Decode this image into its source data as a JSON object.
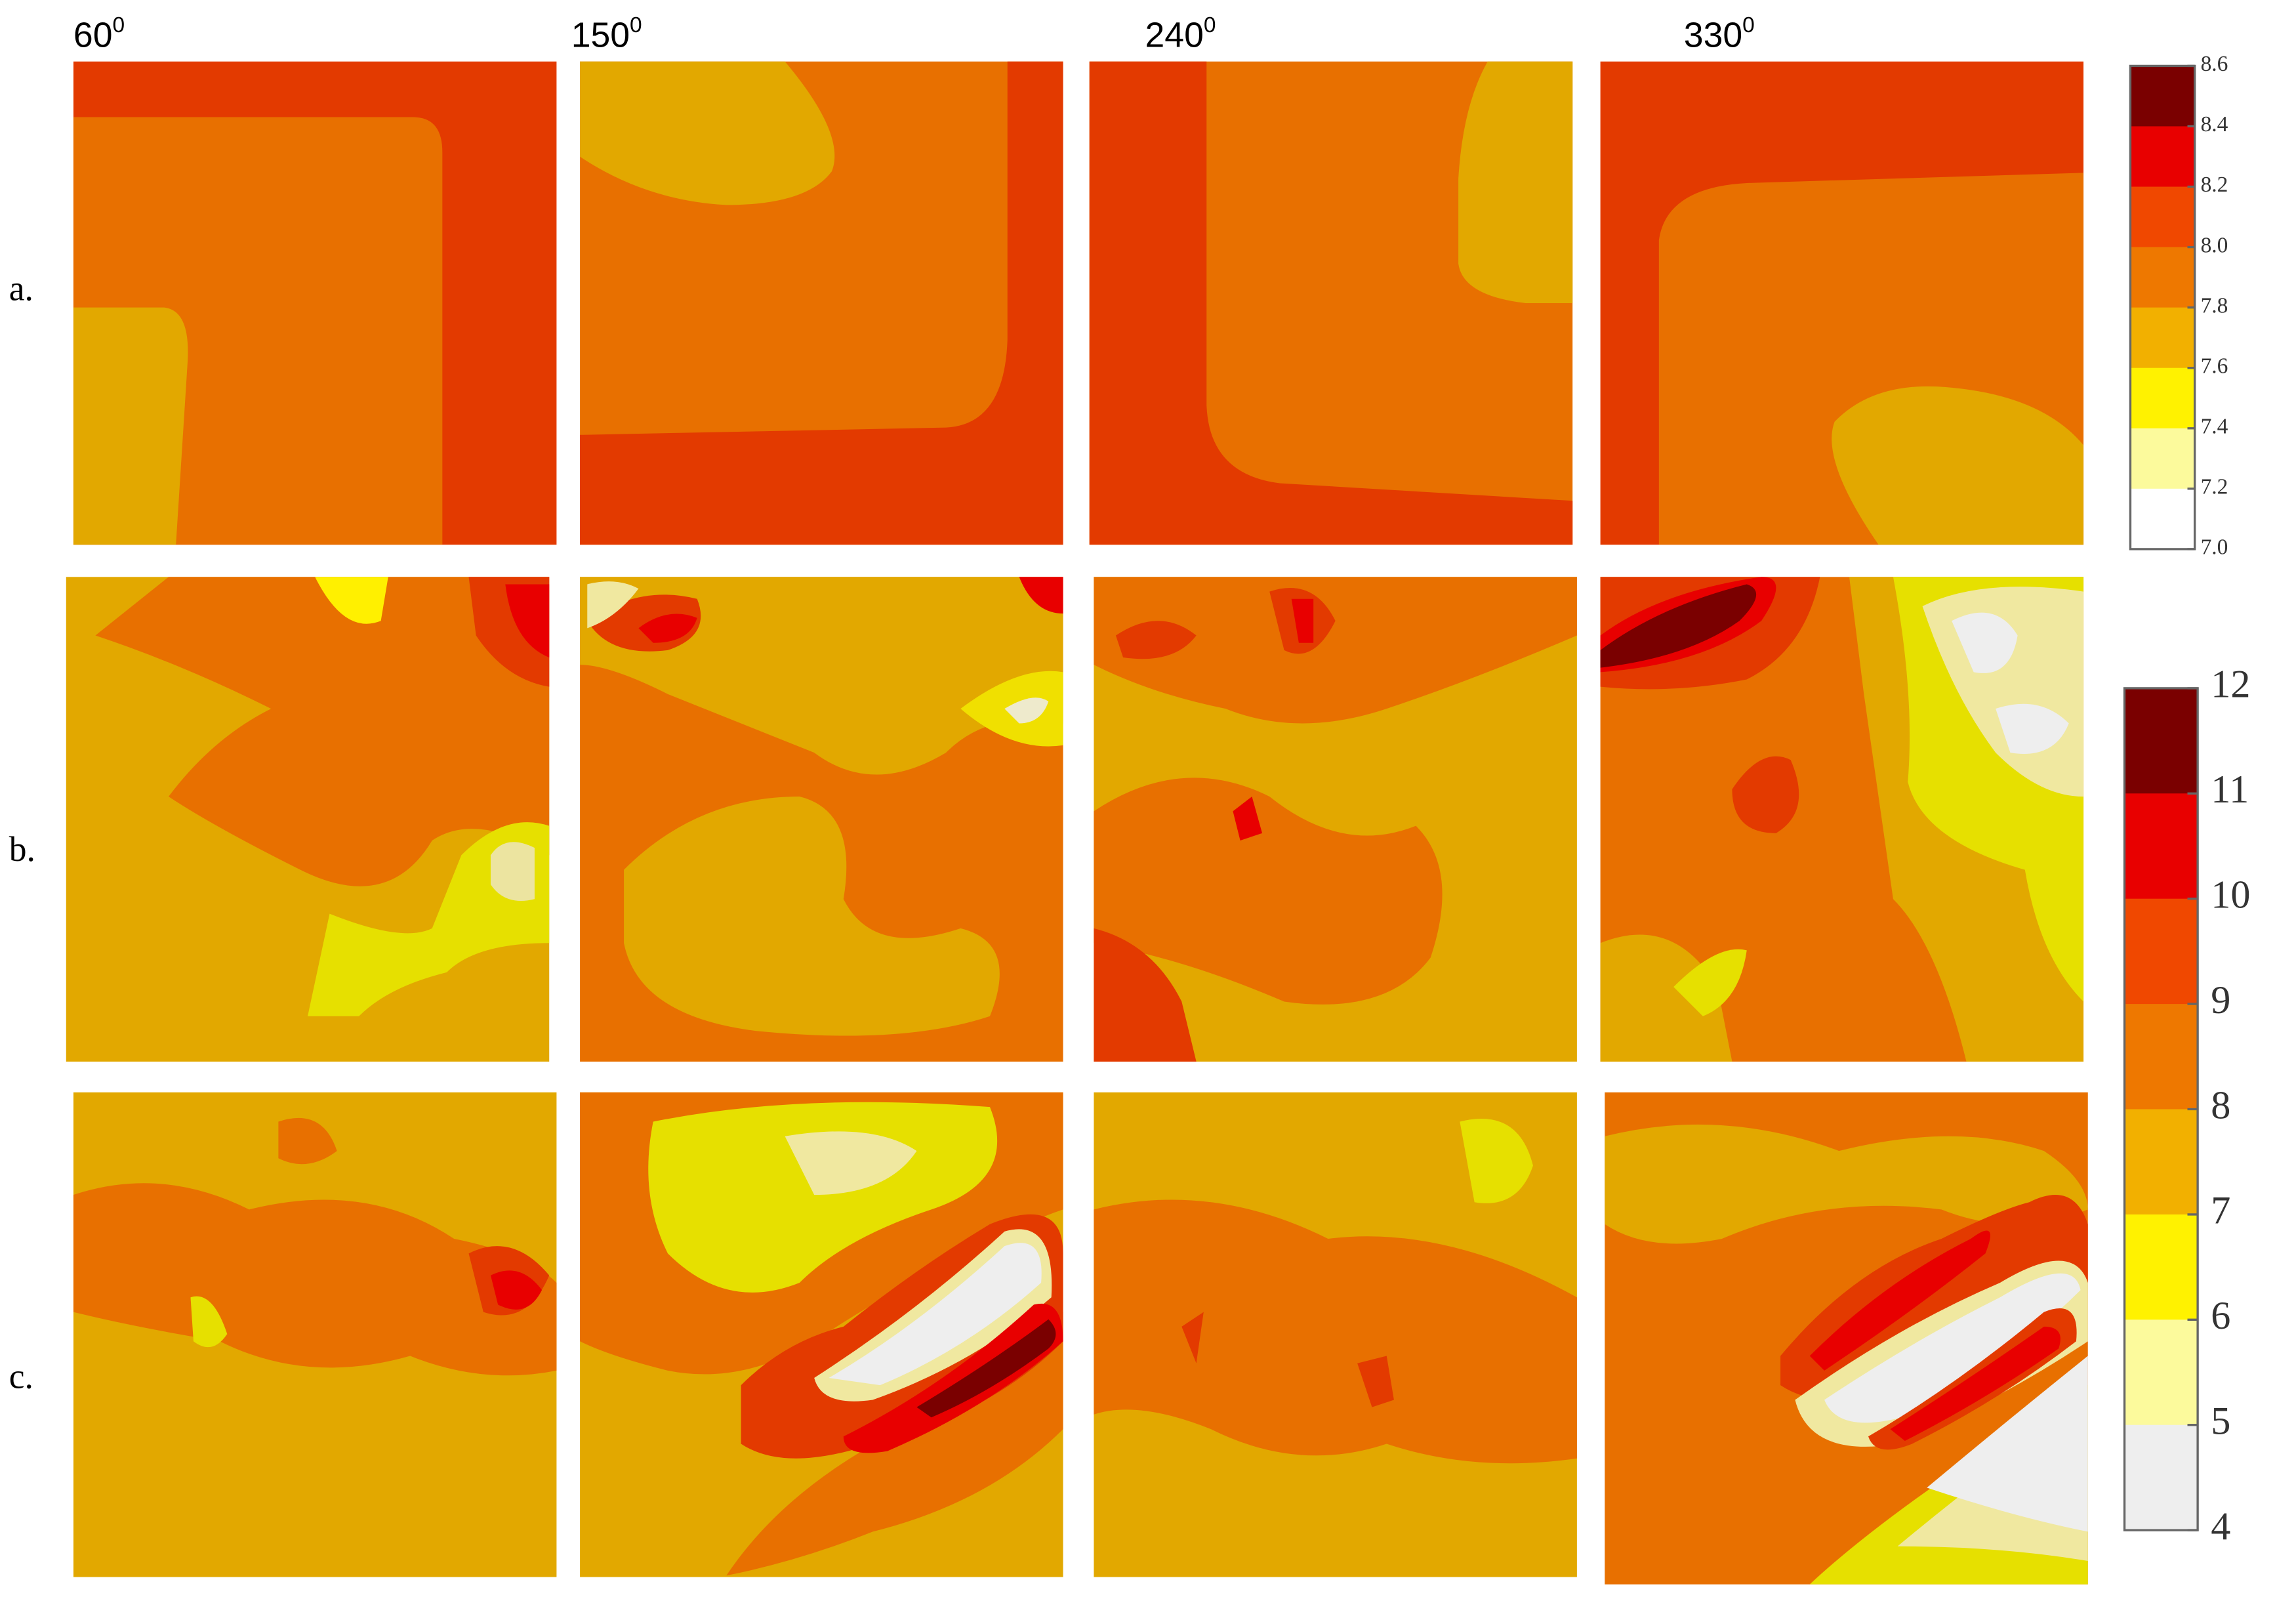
{
  "columns": [
    {
      "angle": "60",
      "sup": "0"
    },
    {
      "angle": "150",
      "sup": "0"
    },
    {
      "angle": "240",
      "sup": "0"
    },
    {
      "angle": "330",
      "sup": "0"
    }
  ],
  "rows": [
    "a.",
    "b.",
    "c."
  ],
  "colorbars": [
    {
      "ticks": [
        "8.6",
        "8.4",
        "8.2",
        "8.0",
        "7.8",
        "7.6",
        "7.4",
        "7.2",
        "7.0"
      ],
      "colors": [
        "#7a0000",
        "#e80000",
        "#f04800",
        "#ee7800",
        "#f2b000",
        "#fff200",
        "#fcfa9c",
        "#ffffff"
      ]
    },
    {
      "ticks": [
        "12",
        "11",
        "10",
        "9",
        "8",
        "7",
        "6",
        "5",
        "4"
      ],
      "colors": [
        "#7a0000",
        "#e80000",
        "#f04800",
        "#ee7800",
        "#f2b000",
        "#fff200",
        "#fcfa9c",
        "#eeeeee"
      ]
    }
  ]
}
